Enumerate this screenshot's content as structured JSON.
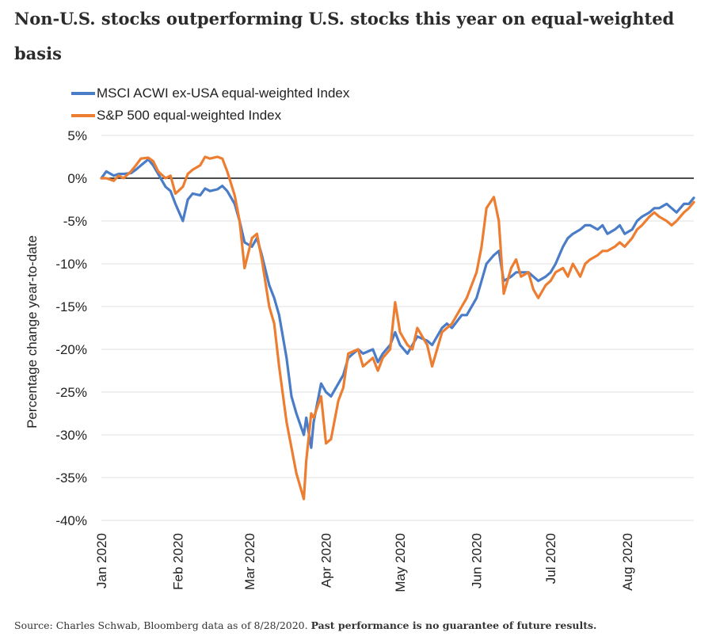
{
  "title": "Non-U.S. stocks outperforming U.S. stocks this year on equal-weighted basis",
  "source_text": "Source: Charles Schwab, Bloomberg data as of 8/28/2020.",
  "source_bold": "Past performance is no guarantee of future results.",
  "chart_data": {
    "type": "line",
    "ylabel": "Percentage change year-to-date",
    "ylim": [
      -40,
      5
    ],
    "yticks": [
      5,
      0,
      -5,
      -10,
      -15,
      -20,
      -25,
      -30,
      -35,
      -40
    ],
    "ytick_labels": [
      "5%",
      "0%",
      "-5%",
      "-10%",
      "-15%",
      "-20%",
      "-25%",
      "-30%",
      "-35%",
      "-40%"
    ],
    "xtick_labels": [
      "Jan 2020",
      "Feb 2020",
      "Mar 2020",
      "Apr 2020",
      "May 2020",
      "Jun 2020",
      "Jul 2020",
      "Aug 2020"
    ],
    "xtick_dates": [
      "2020-01-01",
      "2020-02-01",
      "2020-03-01",
      "2020-04-01",
      "2020-05-01",
      "2020-06-01",
      "2020-07-01",
      "2020-08-01"
    ],
    "xlim": [
      "2020-01-01",
      "2020-08-28"
    ],
    "grid": "horizontal",
    "legend_position": "top-left",
    "series": [
      {
        "name": "MSCI ACWI ex-USA equal-weighted Index",
        "color": "#4a7cc7",
        "points": [
          [
            "2020-01-01",
            0
          ],
          [
            "2020-01-03",
            0.8
          ],
          [
            "2020-01-06",
            0.3
          ],
          [
            "2020-01-08",
            0.5
          ],
          [
            "2020-01-10",
            0.5
          ],
          [
            "2020-01-13",
            0.6
          ],
          [
            "2020-01-15",
            1.0
          ],
          [
            "2020-01-17",
            1.5
          ],
          [
            "2020-01-20",
            2.2
          ],
          [
            "2020-01-22",
            1.5
          ],
          [
            "2020-01-24",
            0.5
          ],
          [
            "2020-01-27",
            -1.0
          ],
          [
            "2020-01-29",
            -1.5
          ],
          [
            "2020-01-31",
            -3.0
          ],
          [
            "2020-02-03",
            -5.0
          ],
          [
            "2020-02-05",
            -2.5
          ],
          [
            "2020-02-07",
            -1.8
          ],
          [
            "2020-02-10",
            -2.0
          ],
          [
            "2020-02-12",
            -1.2
          ],
          [
            "2020-02-14",
            -1.5
          ],
          [
            "2020-02-17",
            -1.3
          ],
          [
            "2020-02-19",
            -0.9
          ],
          [
            "2020-02-21",
            -1.5
          ],
          [
            "2020-02-24",
            -3.0
          ],
          [
            "2020-02-26",
            -5.0
          ],
          [
            "2020-02-28",
            -7.5
          ],
          [
            "2020-03-02",
            -8.0
          ],
          [
            "2020-03-04",
            -7.0
          ],
          [
            "2020-03-06",
            -9.0
          ],
          [
            "2020-03-09",
            -12.5
          ],
          [
            "2020-03-11",
            -14.0
          ],
          [
            "2020-03-13",
            -16.0
          ],
          [
            "2020-03-16",
            -21.0
          ],
          [
            "2020-03-18",
            -25.5
          ],
          [
            "2020-03-20",
            -27.5
          ],
          [
            "2020-03-23",
            -30.0
          ],
          [
            "2020-03-24",
            -28.0
          ],
          [
            "2020-03-26",
            -31.5
          ],
          [
            "2020-03-27",
            -28.5
          ],
          [
            "2020-03-30",
            -24.0
          ],
          [
            "2020-04-01",
            -25.0
          ],
          [
            "2020-04-03",
            -25.5
          ],
          [
            "2020-04-06",
            -24.0
          ],
          [
            "2020-04-08",
            -23.0
          ],
          [
            "2020-04-10",
            -21.0
          ],
          [
            "2020-04-14",
            -20.0
          ],
          [
            "2020-04-16",
            -20.5
          ],
          [
            "2020-04-20",
            -20.0
          ],
          [
            "2020-04-22",
            -21.5
          ],
          [
            "2020-04-24",
            -20.5
          ],
          [
            "2020-04-27",
            -19.5
          ],
          [
            "2020-04-29",
            -18.0
          ],
          [
            "2020-05-01",
            -19.5
          ],
          [
            "2020-05-04",
            -20.5
          ],
          [
            "2020-05-06",
            -19.5
          ],
          [
            "2020-05-08",
            -18.5
          ],
          [
            "2020-05-12",
            -19.0
          ],
          [
            "2020-05-14",
            -19.5
          ],
          [
            "2020-05-18",
            -17.5
          ],
          [
            "2020-05-20",
            -17.0
          ],
          [
            "2020-05-22",
            -17.5
          ],
          [
            "2020-05-26",
            -16.0
          ],
          [
            "2020-05-28",
            -16.0
          ],
          [
            "2020-06-01",
            -14.0
          ],
          [
            "2020-06-03",
            -12.0
          ],
          [
            "2020-06-05",
            -10.0
          ],
          [
            "2020-06-08",
            -9.0
          ],
          [
            "2020-06-10",
            -8.5
          ],
          [
            "2020-06-12",
            -12.0
          ],
          [
            "2020-06-15",
            -11.5
          ],
          [
            "2020-06-17",
            -11.0
          ],
          [
            "2020-06-19",
            -11.0
          ],
          [
            "2020-06-22",
            -11.0
          ],
          [
            "2020-06-24",
            -11.5
          ],
          [
            "2020-06-26",
            -12.0
          ],
          [
            "2020-06-29",
            -11.5
          ],
          [
            "2020-07-01",
            -11.0
          ],
          [
            "2020-07-03",
            -10.0
          ],
          [
            "2020-07-06",
            -8.0
          ],
          [
            "2020-07-08",
            -7.0
          ],
          [
            "2020-07-10",
            -6.5
          ],
          [
            "2020-07-13",
            -6.0
          ],
          [
            "2020-07-15",
            -5.5
          ],
          [
            "2020-07-17",
            -5.5
          ],
          [
            "2020-07-20",
            -6.0
          ],
          [
            "2020-07-22",
            -5.5
          ],
          [
            "2020-07-24",
            -6.5
          ],
          [
            "2020-07-27",
            -6.0
          ],
          [
            "2020-07-29",
            -5.5
          ],
          [
            "2020-07-31",
            -6.5
          ],
          [
            "2020-08-03",
            -6.0
          ],
          [
            "2020-08-05",
            -5.0
          ],
          [
            "2020-08-07",
            -4.5
          ],
          [
            "2020-08-10",
            -4.0
          ],
          [
            "2020-08-12",
            -3.5
          ],
          [
            "2020-08-14",
            -3.5
          ],
          [
            "2020-08-17",
            -3.0
          ],
          [
            "2020-08-19",
            -3.5
          ],
          [
            "2020-08-21",
            -4.0
          ],
          [
            "2020-08-24",
            -3.0
          ],
          [
            "2020-08-26",
            -3.0
          ],
          [
            "2020-08-28",
            -2.3
          ]
        ]
      },
      {
        "name": "S&P 500 equal-weighted Index",
        "color": "#ed7d31",
        "points": [
          [
            "2020-01-01",
            0
          ],
          [
            "2020-01-03",
            0.0
          ],
          [
            "2020-01-06",
            -0.3
          ],
          [
            "2020-01-08",
            0.3
          ],
          [
            "2020-01-10",
            0.0
          ],
          [
            "2020-01-13",
            0.8
          ],
          [
            "2020-01-15",
            1.5
          ],
          [
            "2020-01-17",
            2.3
          ],
          [
            "2020-01-20",
            2.4
          ],
          [
            "2020-01-22",
            2.0
          ],
          [
            "2020-01-24",
            0.8
          ],
          [
            "2020-01-27",
            0.0
          ],
          [
            "2020-01-29",
            0.3
          ],
          [
            "2020-01-31",
            -1.8
          ],
          [
            "2020-02-03",
            -1.0
          ],
          [
            "2020-02-05",
            0.5
          ],
          [
            "2020-02-07",
            1.0
          ],
          [
            "2020-02-10",
            1.5
          ],
          [
            "2020-02-12",
            2.5
          ],
          [
            "2020-02-14",
            2.3
          ],
          [
            "2020-02-17",
            2.5
          ],
          [
            "2020-02-19",
            2.3
          ],
          [
            "2020-02-21",
            0.8
          ],
          [
            "2020-02-24",
            -2.0
          ],
          [
            "2020-02-26",
            -5.0
          ],
          [
            "2020-02-28",
            -10.5
          ],
          [
            "2020-03-02",
            -7.0
          ],
          [
            "2020-03-04",
            -6.5
          ],
          [
            "2020-03-06",
            -9.5
          ],
          [
            "2020-03-09",
            -15.0
          ],
          [
            "2020-03-11",
            -17.0
          ],
          [
            "2020-03-13",
            -22.0
          ],
          [
            "2020-03-16",
            -28.5
          ],
          [
            "2020-03-18",
            -31.5
          ],
          [
            "2020-03-20",
            -34.5
          ],
          [
            "2020-03-23",
            -37.5
          ],
          [
            "2020-03-24",
            -33.0
          ],
          [
            "2020-03-26",
            -27.5
          ],
          [
            "2020-03-27",
            -28.0
          ],
          [
            "2020-03-30",
            -25.5
          ],
          [
            "2020-04-01",
            -31.0
          ],
          [
            "2020-04-03",
            -30.5
          ],
          [
            "2020-04-06",
            -26.0
          ],
          [
            "2020-04-08",
            -24.5
          ],
          [
            "2020-04-10",
            -20.5
          ],
          [
            "2020-04-14",
            -20.0
          ],
          [
            "2020-04-16",
            -22.0
          ],
          [
            "2020-04-20",
            -21.0
          ],
          [
            "2020-04-22",
            -22.5
          ],
          [
            "2020-04-24",
            -21.0
          ],
          [
            "2020-04-27",
            -20.0
          ],
          [
            "2020-04-29",
            -14.5
          ],
          [
            "2020-05-01",
            -18.0
          ],
          [
            "2020-05-04",
            -19.5
          ],
          [
            "2020-05-06",
            -20.0
          ],
          [
            "2020-05-08",
            -17.5
          ],
          [
            "2020-05-12",
            -19.5
          ],
          [
            "2020-05-14",
            -22.0
          ],
          [
            "2020-05-18",
            -18.0
          ],
          [
            "2020-05-20",
            -17.5
          ],
          [
            "2020-05-22",
            -17.0
          ],
          [
            "2020-05-26",
            -15.0
          ],
          [
            "2020-05-28",
            -14.0
          ],
          [
            "2020-06-01",
            -11.0
          ],
          [
            "2020-06-03",
            -8.0
          ],
          [
            "2020-06-05",
            -3.5
          ],
          [
            "2020-06-08",
            -2.2
          ],
          [
            "2020-06-10",
            -5.0
          ],
          [
            "2020-06-12",
            -13.5
          ],
          [
            "2020-06-15",
            -10.5
          ],
          [
            "2020-06-17",
            -9.5
          ],
          [
            "2020-06-19",
            -11.5
          ],
          [
            "2020-06-22",
            -11.0
          ],
          [
            "2020-06-24",
            -13.0
          ],
          [
            "2020-06-26",
            -14.0
          ],
          [
            "2020-06-29",
            -12.5
          ],
          [
            "2020-07-01",
            -12.0
          ],
          [
            "2020-07-03",
            -11.0
          ],
          [
            "2020-07-06",
            -10.5
          ],
          [
            "2020-07-08",
            -11.5
          ],
          [
            "2020-07-10",
            -10.0
          ],
          [
            "2020-07-13",
            -11.5
          ],
          [
            "2020-07-15",
            -10.0
          ],
          [
            "2020-07-17",
            -9.5
          ],
          [
            "2020-07-20",
            -9.0
          ],
          [
            "2020-07-22",
            -8.5
          ],
          [
            "2020-07-24",
            -8.5
          ],
          [
            "2020-07-27",
            -8.0
          ],
          [
            "2020-07-29",
            -7.5
          ],
          [
            "2020-07-31",
            -8.0
          ],
          [
            "2020-08-03",
            -7.0
          ],
          [
            "2020-08-05",
            -6.0
          ],
          [
            "2020-08-07",
            -5.5
          ],
          [
            "2020-08-10",
            -4.5
          ],
          [
            "2020-08-12",
            -4.0
          ],
          [
            "2020-08-14",
            -4.5
          ],
          [
            "2020-08-17",
            -5.0
          ],
          [
            "2020-08-19",
            -5.5
          ],
          [
            "2020-08-21",
            -5.0
          ],
          [
            "2020-08-24",
            -4.0
          ],
          [
            "2020-08-26",
            -3.5
          ],
          [
            "2020-08-28",
            -2.8
          ]
        ]
      }
    ]
  }
}
